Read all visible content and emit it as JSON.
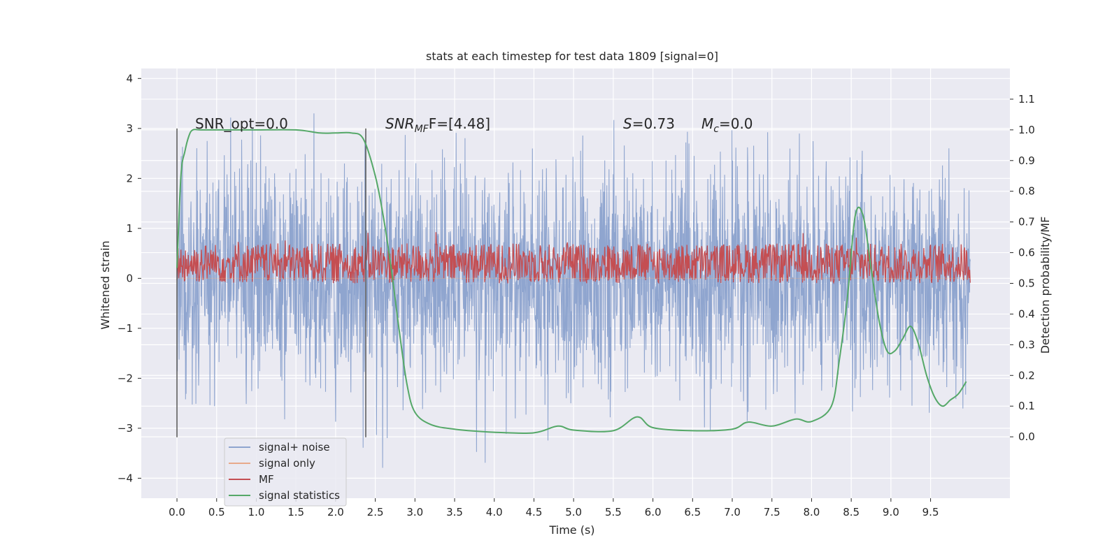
{
  "chart_data": {
    "type": "line",
    "title": "stats at each timestep for test data 1809 [signal=0]",
    "xlabel": "Time (s)",
    "ylabel_left": "Whitened strain",
    "ylabel_right": "Detection probability/MF",
    "xlim": [
      -0.45,
      10.5
    ],
    "ylim_left": [
      -4.4,
      4.2
    ],
    "ylim_right": [
      -0.2,
      1.2
    ],
    "x_ticks": [
      0.0,
      0.5,
      1.0,
      1.5,
      2.0,
      2.5,
      3.0,
      3.5,
      4.0,
      4.5,
      5.0,
      5.5,
      6.0,
      6.5,
      7.0,
      7.5,
      8.0,
      8.5,
      9.0,
      9.5
    ],
    "x_tick_labels": [
      "0.0",
      "0.5",
      "1.0",
      "1.5",
      "2.0",
      "2.5",
      "3.0",
      "3.5",
      "4.0",
      "4.5",
      "5.0",
      "5.5",
      "6.0",
      "6.5",
      "7.0",
      "7.5",
      "8.0",
      "8.5",
      "9.0",
      "9.5"
    ],
    "y_left_ticks": [
      -4,
      -3,
      -2,
      -1,
      0,
      1,
      2,
      3,
      4
    ],
    "y_left_tick_labels": [
      "−4",
      "−3",
      "−2",
      "−1",
      "0",
      "1",
      "2",
      "3",
      "4"
    ],
    "y_right_ticks": [
      0.0,
      0.1,
      0.2,
      0.3,
      0.4,
      0.5,
      0.6,
      0.7,
      0.8,
      0.9,
      1.0,
      1.1
    ],
    "y_right_tick_labels": [
      "0.0",
      "0.1",
      "0.2",
      "0.3",
      "0.4",
      "0.5",
      "0.6",
      "0.7",
      "0.8",
      "0.9",
      "1.0",
      "1.1"
    ],
    "grid": true,
    "legend_position": "lower-left",
    "vertical_lines_x": [
      0.0,
      2.38
    ],
    "annotations": {
      "snr_opt": "SNR_opt=0.0",
      "snr_mf_base": "SNR",
      "snr_mf_sub": "MF",
      "snr_mf_rest": "F=[4.48]",
      "s_label": "S",
      "s_value": "=0.73",
      "mc_label": "M",
      "mc_sub": "c",
      "mc_value": "=0.0"
    },
    "series": [
      {
        "name": "signal+ noise",
        "color": "#8fa5cf",
        "axis": "left",
        "x_range": [
          0.0,
          10.0
        ],
        "amplitude_envelope": [
          -3.8,
          3.8
        ],
        "note_values": "dense noise"
      },
      {
        "name": "signal only",
        "color": "#e8a98a",
        "axis": "left",
        "x_range": [
          0.0,
          10.0
        ],
        "values": 0
      },
      {
        "name": "MF",
        "color": "#c44e52",
        "axis": "right",
        "x_range": [
          0.0,
          10.0
        ],
        "value_range": [
          0.5,
          0.63
        ]
      },
      {
        "name": "signal statistics",
        "color": "#55a868",
        "axis": "right",
        "x": [
          0.0,
          0.05,
          0.1,
          0.15,
          0.2,
          0.3,
          0.5,
          1.0,
          1.5,
          1.8,
          2.0,
          2.2,
          2.35,
          2.5,
          2.6,
          2.7,
          2.8,
          2.9,
          3.0,
          3.2,
          3.5,
          4.0,
          4.5,
          4.8,
          5.0,
          5.5,
          5.8,
          6.0,
          6.5,
          7.0,
          7.2,
          7.5,
          7.8,
          8.0,
          8.25,
          8.35,
          8.45,
          8.55,
          8.65,
          8.75,
          8.85,
          8.95,
          9.05,
          9.15,
          9.25,
          9.35,
          9.45,
          9.55,
          9.65,
          9.75,
          9.85,
          9.95
        ],
        "y": [
          0.55,
          0.85,
          0.93,
          0.98,
          1.0,
          1.0,
          1.0,
          1.0,
          1.0,
          0.99,
          0.99,
          0.99,
          0.97,
          0.85,
          0.72,
          0.55,
          0.35,
          0.17,
          0.08,
          0.04,
          0.025,
          0.015,
          0.013,
          0.035,
          0.022,
          0.02,
          0.065,
          0.03,
          0.02,
          0.025,
          0.048,
          0.035,
          0.058,
          0.05,
          0.1,
          0.25,
          0.45,
          0.72,
          0.72,
          0.55,
          0.38,
          0.28,
          0.28,
          0.32,
          0.36,
          0.3,
          0.2,
          0.13,
          0.1,
          0.12,
          0.14,
          0.18
        ]
      }
    ]
  }
}
